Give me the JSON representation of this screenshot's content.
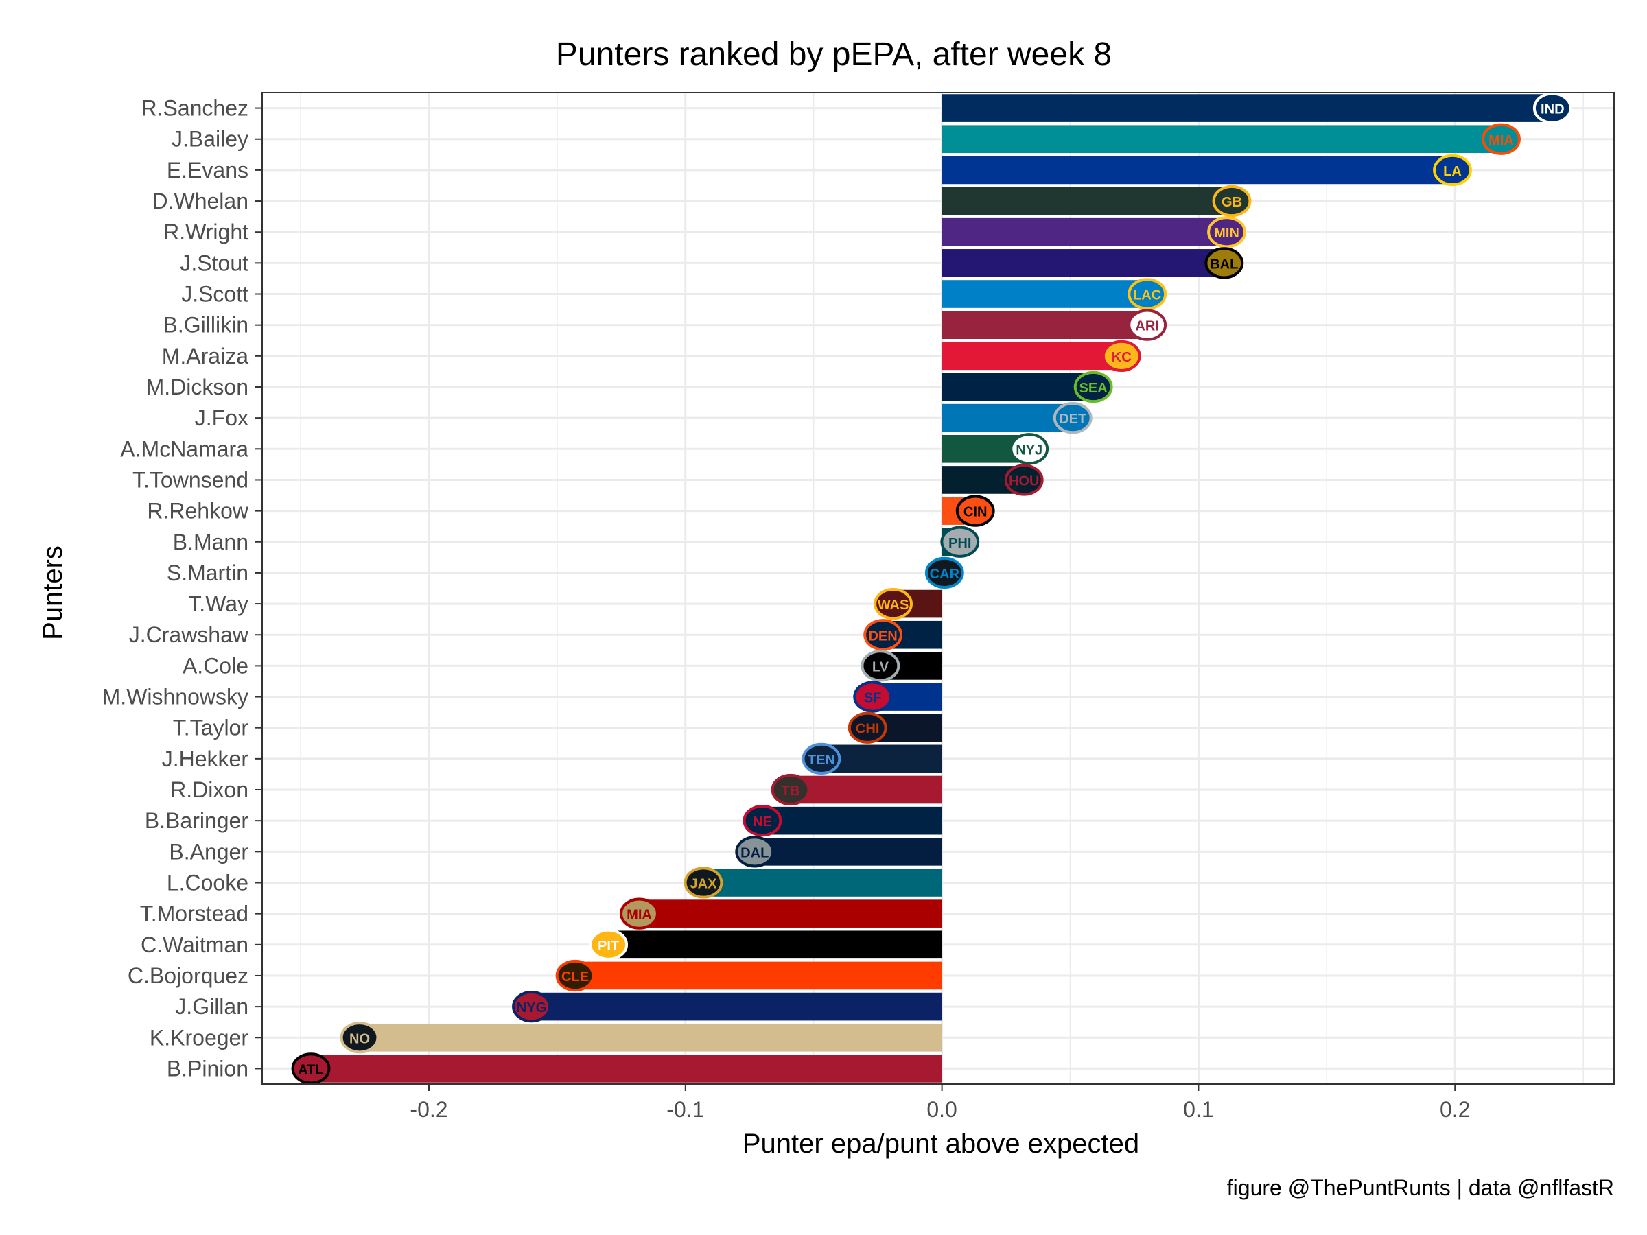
{
  "chart_data": {
    "type": "bar",
    "orientation": "horizontal",
    "title": "Punters ranked by pEPA, after week 8",
    "xlabel": "Punter epa/punt above expected",
    "ylabel": "Punters",
    "caption": "figure @ThePuntRunts | data @nflfastR",
    "xlim": [
      -0.265,
      0.262
    ],
    "xticks": [
      {
        "value": -0.2,
        "label": "-0.2"
      },
      {
        "value": -0.1,
        "label": "-0.1"
      },
      {
        "value": 0.0,
        "label": "0.0"
      },
      {
        "value": 0.1,
        "label": "0.1"
      },
      {
        "value": 0.2,
        "label": "0.2"
      }
    ],
    "grid": true,
    "bars": [
      {
        "name": "R.Sanchez",
        "value": 0.238,
        "team": "IND",
        "color": "#002c5f",
        "logo_color": "#ffffff",
        "logo_accent": "#002c5f"
      },
      {
        "name": "J.Bailey",
        "value": 0.218,
        "team": "MIA",
        "color": "#008e97",
        "logo_color": "#fc4c02",
        "logo_accent": "#008e97"
      },
      {
        "name": "E.Evans",
        "value": 0.199,
        "team": "LA",
        "color": "#003594",
        "logo_color": "#ffd100",
        "logo_accent": "#003594"
      },
      {
        "name": "D.Whelan",
        "value": 0.113,
        "team": "GB",
        "color": "#203731",
        "logo_color": "#ffb612",
        "logo_accent": "#203731"
      },
      {
        "name": "R.Wright",
        "value": 0.111,
        "team": "MIN",
        "color": "#4f2683",
        "logo_color": "#ffc62f",
        "logo_accent": "#4f2683"
      },
      {
        "name": "J.Stout",
        "value": 0.11,
        "team": "BAL",
        "color": "#241773",
        "logo_color": "#000000",
        "logo_accent": "#9e7c0c"
      },
      {
        "name": "J.Scott",
        "value": 0.08,
        "team": "LAC",
        "color": "#0080c6",
        "logo_color": "#ffc20e",
        "logo_accent": "#0080c6"
      },
      {
        "name": "B.Gillikin",
        "value": 0.08,
        "team": "ARI",
        "color": "#97233f",
        "logo_color": "#97233f",
        "logo_accent": "#ffffff"
      },
      {
        "name": "M.Araiza",
        "value": 0.07,
        "team": "KC",
        "color": "#e31837",
        "logo_color": "#e31837",
        "logo_accent": "#ffb81c"
      },
      {
        "name": "M.Dickson",
        "value": 0.059,
        "team": "SEA",
        "color": "#002244",
        "logo_color": "#69be28",
        "logo_accent": "#002244"
      },
      {
        "name": "J.Fox",
        "value": 0.051,
        "team": "DET",
        "color": "#0076b6",
        "logo_color": "#b0b7bc",
        "logo_accent": "#0076b6"
      },
      {
        "name": "A.McNamara",
        "value": 0.034,
        "team": "NYJ",
        "color": "#125740",
        "logo_color": "#125740",
        "logo_accent": "#ffffff"
      },
      {
        "name": "T.Townsend",
        "value": 0.032,
        "team": "HOU",
        "color": "#03202f",
        "logo_color": "#a71930",
        "logo_accent": "#03202f"
      },
      {
        "name": "R.Rehkow",
        "value": 0.013,
        "team": "CIN",
        "color": "#fb4f14",
        "logo_color": "#000000",
        "logo_accent": "#fb4f14"
      },
      {
        "name": "B.Mann",
        "value": 0.007,
        "team": "PHI",
        "color": "#004c54",
        "logo_color": "#004c54",
        "logo_accent": "#a5acaf"
      },
      {
        "name": "S.Martin",
        "value": 0.001,
        "team": "CAR",
        "color": "#0085ca",
        "logo_color": "#0085ca",
        "logo_accent": "#101820"
      },
      {
        "name": "T.Way",
        "value": -0.019,
        "team": "WAS",
        "color": "#5a1414",
        "logo_color": "#ffb612",
        "logo_accent": "#5a1414"
      },
      {
        "name": "J.Crawshaw",
        "value": -0.023,
        "team": "DEN",
        "color": "#002244",
        "logo_color": "#fb4f14",
        "logo_accent": "#002244"
      },
      {
        "name": "A.Cole",
        "value": -0.024,
        "team": "LV",
        "color": "#000000",
        "logo_color": "#a5acaf",
        "logo_accent": "#000000"
      },
      {
        "name": "M.Wishnowsky",
        "value": -0.027,
        "team": "SF",
        "color": "#00338d",
        "logo_color": "#00338d",
        "logo_accent": "#c60c30"
      },
      {
        "name": "T.Taylor",
        "value": -0.029,
        "team": "CHI",
        "color": "#0b162a",
        "logo_color": "#c83803",
        "logo_accent": "#0b162a"
      },
      {
        "name": "J.Hekker",
        "value": -0.047,
        "team": "TEN",
        "color": "#0c2340",
        "logo_color": "#4b92db",
        "logo_accent": "#0c2340"
      },
      {
        "name": "R.Dixon",
        "value": -0.059,
        "team": "TB",
        "color": "#a71930",
        "logo_color": "#a71930",
        "logo_accent": "#34302b"
      },
      {
        "name": "B.Baringer",
        "value": -0.07,
        "team": "NE",
        "color": "#002244",
        "logo_color": "#c60c30",
        "logo_accent": "#002244"
      },
      {
        "name": "B.Anger",
        "value": -0.073,
        "team": "DAL",
        "color": "#041e42",
        "logo_color": "#041e42",
        "logo_accent": "#869397"
      },
      {
        "name": "L.Cooke",
        "value": -0.093,
        "team": "JAX",
        "color": "#006778",
        "logo_color": "#d7a22a",
        "logo_accent": "#101820"
      },
      {
        "name": "T.Morstead",
        "value": -0.118,
        "team": "MIA",
        "color": "#aa0000",
        "logo_color": "#aa0000",
        "logo_accent": "#b3995d"
      },
      {
        "name": "C.Waitman",
        "value": -0.13,
        "team": "PIT",
        "color": "#000000",
        "logo_color": "#ffffff",
        "logo_accent": "#ffb612"
      },
      {
        "name": "C.Bojorquez",
        "value": -0.143,
        "team": "CLE",
        "color": "#ff3c00",
        "logo_color": "#ff3c00",
        "logo_accent": "#311d00"
      },
      {
        "name": "J.Gillan",
        "value": -0.16,
        "team": "NYG",
        "color": "#0b2265",
        "logo_color": "#0b2265",
        "logo_accent": "#a71930"
      },
      {
        "name": "K.Kroeger",
        "value": -0.227,
        "team": "NO",
        "color": "#d3bc8d",
        "logo_color": "#d3bc8d",
        "logo_accent": "#101820"
      },
      {
        "name": "B.Pinion",
        "value": -0.246,
        "team": "ATL",
        "color": "#a71930",
        "logo_color": "#000000",
        "logo_accent": "#a71930"
      }
    ]
  }
}
